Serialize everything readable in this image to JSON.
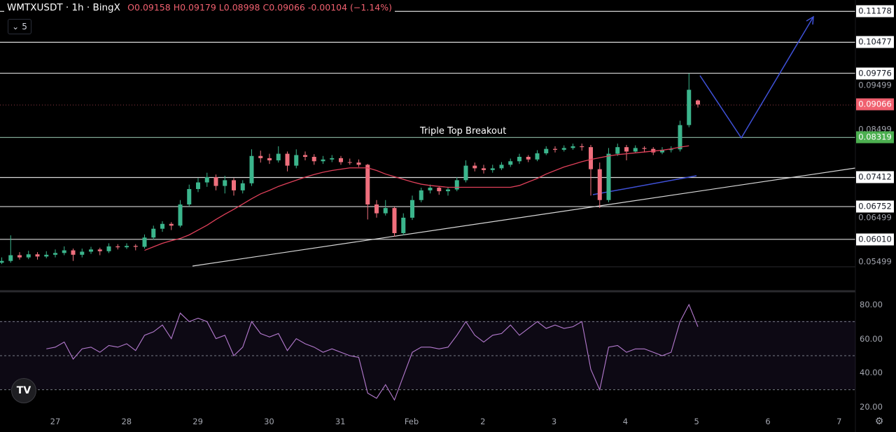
{
  "header": {
    "symbol": "WMTXUSDT · 1h · BingX",
    "open_k": "O",
    "open": "0.09158",
    "high_k": "H",
    "high": "0.09179",
    "low_k": "L",
    "low": "0.08998",
    "close_k": "C",
    "close": "0.09066",
    "change": "-0.00104 (−1.14%)",
    "indicator_toggle": "5"
  },
  "annotation": "Triple Top Breakout",
  "colors": {
    "up": "#3bb58c",
    "down": "#ef6f7d",
    "ma": "#e0405a",
    "rsi": "#b57bd0",
    "projection": "#3f51d8",
    "level": "#d9d9d9",
    "support": "#7fa593",
    "last_price": "#f0606f",
    "breakout_price": "#4caf50"
  },
  "price_axis": [
    {
      "v": "0.11178",
      "kind": "box"
    },
    {
      "v": "0.10477",
      "kind": "box"
    },
    {
      "v": "0.09776",
      "kind": "box"
    },
    {
      "v": "0.09499",
      "kind": "plain"
    },
    {
      "v": "0.09066",
      "kind": "red"
    },
    {
      "v": "0.08499",
      "kind": "plain"
    },
    {
      "v": "0.08319",
      "kind": "green"
    },
    {
      "v": "0.07412",
      "kind": "box"
    },
    {
      "v": "0.06752",
      "kind": "box"
    },
    {
      "v": "0.06499",
      "kind": "plain"
    },
    {
      "v": "0.06010",
      "kind": "box"
    },
    {
      "v": "0.05499",
      "kind": "plain"
    }
  ],
  "rsi_axis": [
    "80.00",
    "60.00",
    "40.00",
    "20.00"
  ],
  "time_axis": [
    "27",
    "28",
    "29",
    "30",
    "31",
    "Feb",
    "2",
    "3",
    "4",
    "5",
    "6",
    "7"
  ],
  "icons": {
    "logo": "tradingview-logo",
    "settings": "gear-icon",
    "toggle": "chevron-down-icon"
  },
  "chart_data": [
    {
      "type": "candlestick",
      "title": "WMTXUSDT · 1h · BingX",
      "ylim": [
        0.0535,
        0.1125
      ],
      "horizontal_levels": [
        0.11178,
        0.10477,
        0.09776,
        0.08319,
        0.07412,
        0.06752,
        0.0601
      ],
      "last_price": 0.09066,
      "candles": [
        [
          0.0548,
          0.056,
          0.0545,
          0.0552
        ],
        [
          0.0552,
          0.061,
          0.0548,
          0.0565
        ],
        [
          0.0565,
          0.0572,
          0.0555,
          0.056
        ],
        [
          0.056,
          0.0575,
          0.0556,
          0.0567
        ],
        [
          0.0567,
          0.0572,
          0.0555,
          0.0562
        ],
        [
          0.0562,
          0.0574,
          0.0558,
          0.0566
        ],
        [
          0.0566,
          0.0578,
          0.056,
          0.057
        ],
        [
          0.057,
          0.0585,
          0.0565,
          0.0576
        ],
        [
          0.0576,
          0.058,
          0.0552,
          0.0566
        ],
        [
          0.0566,
          0.058,
          0.056,
          0.0573
        ],
        [
          0.0573,
          0.0584,
          0.0568,
          0.0578
        ],
        [
          0.0578,
          0.0582,
          0.0565,
          0.0574
        ],
        [
          0.0574,
          0.0592,
          0.057,
          0.0585
        ],
        [
          0.0585,
          0.059,
          0.0578,
          0.0583
        ],
        [
          0.0583,
          0.0592,
          0.0579,
          0.0586
        ],
        [
          0.0586,
          0.059,
          0.0576,
          0.0584
        ],
        [
          0.0584,
          0.0612,
          0.058,
          0.0605
        ],
        [
          0.0605,
          0.0632,
          0.06,
          0.0625
        ],
        [
          0.0625,
          0.0642,
          0.0618,
          0.0636
        ],
        [
          0.0636,
          0.064,
          0.0622,
          0.0632
        ],
        [
          0.0632,
          0.069,
          0.0628,
          0.068
        ],
        [
          0.068,
          0.0725,
          0.0675,
          0.0715
        ],
        [
          0.0715,
          0.074,
          0.0708,
          0.073
        ],
        [
          0.073,
          0.0752,
          0.072,
          0.0742
        ],
        [
          0.0742,
          0.0748,
          0.0712,
          0.0722
        ],
        [
          0.0722,
          0.0745,
          0.0705,
          0.0735
        ],
        [
          0.0735,
          0.074,
          0.07,
          0.0712
        ],
        [
          0.0712,
          0.0735,
          0.0705,
          0.0728
        ],
        [
          0.0728,
          0.0805,
          0.0722,
          0.079
        ],
        [
          0.079,
          0.0802,
          0.0775,
          0.0785
        ],
        [
          0.0785,
          0.0795,
          0.0772,
          0.078
        ],
        [
          0.078,
          0.0812,
          0.0775,
          0.0795
        ],
        [
          0.0795,
          0.08,
          0.0755,
          0.0768
        ],
        [
          0.0768,
          0.0805,
          0.0762,
          0.0792
        ],
        [
          0.0792,
          0.08,
          0.078,
          0.0788
        ],
        [
          0.0788,
          0.0794,
          0.077,
          0.0778
        ],
        [
          0.0778,
          0.079,
          0.0772,
          0.0782
        ],
        [
          0.0782,
          0.0792,
          0.0776,
          0.0785
        ],
        [
          0.0785,
          0.079,
          0.077,
          0.0776
        ],
        [
          0.0776,
          0.0784,
          0.077,
          0.0775
        ],
        [
          0.0775,
          0.0782,
          0.0765,
          0.077
        ],
        [
          0.077,
          0.0772,
          0.0646,
          0.068
        ],
        [
          0.068,
          0.069,
          0.065,
          0.066
        ],
        [
          0.066,
          0.069,
          0.0655,
          0.0672
        ],
        [
          0.0672,
          0.0675,
          0.0607,
          0.0615
        ],
        [
          0.0615,
          0.066,
          0.061,
          0.065
        ],
        [
          0.065,
          0.07,
          0.0645,
          0.069
        ],
        [
          0.069,
          0.0718,
          0.0685,
          0.0712
        ],
        [
          0.0712,
          0.0725,
          0.0705,
          0.0718
        ],
        [
          0.0718,
          0.0722,
          0.0702,
          0.071
        ],
        [
          0.071,
          0.072,
          0.07,
          0.0714
        ],
        [
          0.0714,
          0.0742,
          0.071,
          0.0735
        ],
        [
          0.0735,
          0.078,
          0.073,
          0.0768
        ],
        [
          0.0768,
          0.0775,
          0.0755,
          0.0762
        ],
        [
          0.0762,
          0.077,
          0.075,
          0.0758
        ],
        [
          0.0758,
          0.077,
          0.0752,
          0.0762
        ],
        [
          0.0762,
          0.0776,
          0.0758,
          0.077
        ],
        [
          0.077,
          0.0784,
          0.0765,
          0.0778
        ],
        [
          0.0778,
          0.0795,
          0.0772,
          0.0788
        ],
        [
          0.0788,
          0.0792,
          0.0776,
          0.0782
        ],
        [
          0.0782,
          0.0803,
          0.0778,
          0.0796
        ],
        [
          0.0796,
          0.0812,
          0.0792,
          0.0806
        ],
        [
          0.0806,
          0.0812,
          0.0798,
          0.0804
        ],
        [
          0.0804,
          0.0814,
          0.08,
          0.0808
        ],
        [
          0.0808,
          0.0818,
          0.0804,
          0.0812
        ],
        [
          0.0812,
          0.0818,
          0.0802,
          0.081
        ],
        [
          0.081,
          0.0815,
          0.07,
          0.076
        ],
        [
          0.076,
          0.0775,
          0.0672,
          0.069
        ],
        [
          0.069,
          0.0808,
          0.0685,
          0.0795
        ],
        [
          0.0795,
          0.0818,
          0.079,
          0.081
        ],
        [
          0.081,
          0.0815,
          0.078,
          0.08
        ],
        [
          0.08,
          0.0814,
          0.0796,
          0.0808
        ],
        [
          0.0808,
          0.0812,
          0.0798,
          0.0806
        ],
        [
          0.0806,
          0.081,
          0.0792,
          0.0798
        ],
        [
          0.0798,
          0.081,
          0.0794,
          0.0804
        ],
        [
          0.0804,
          0.0812,
          0.0798,
          0.0805
        ],
        [
          0.0805,
          0.087,
          0.08,
          0.086
        ],
        [
          0.086,
          0.0977,
          0.0855,
          0.094
        ],
        [
          0.09158,
          0.09179,
          0.08998,
          0.09066
        ]
      ],
      "moving_average": [
        null,
        null,
        null,
        null,
        null,
        null,
        null,
        null,
        null,
        null,
        null,
        null,
        null,
        null,
        null,
        null,
        0.0576,
        0.0584,
        0.0592,
        0.0598,
        0.0603,
        0.0611,
        0.0622,
        0.0633,
        0.0646,
        0.0658,
        0.0669,
        0.0681,
        0.0693,
        0.0704,
        0.0712,
        0.0721,
        0.0728,
        0.0735,
        0.0742,
        0.0748,
        0.0753,
        0.0757,
        0.076,
        0.0763,
        0.0763,
        0.0763,
        0.0757,
        0.0749,
        0.0743,
        0.0737,
        0.0731,
        0.0726,
        0.0723,
        0.0721,
        0.0719,
        0.0719,
        0.0719,
        0.0719,
        0.0719,
        0.0719,
        0.0719,
        0.0719,
        0.0723,
        0.0731,
        0.0739,
        0.0749,
        0.0757,
        0.0765,
        0.0771,
        0.0777,
        0.0782,
        0.0786,
        0.079,
        0.0793,
        0.0795,
        0.0797,
        0.0799,
        0.0801,
        0.0803,
        0.0806,
        0.081,
        0.0813,
        null
      ]
    },
    {
      "type": "line",
      "ylim": [
        20,
        80
      ],
      "bands": [
        70,
        50,
        30
      ],
      "values": [
        null,
        null,
        null,
        null,
        null,
        54,
        55,
        58,
        48,
        54,
        55,
        52,
        56,
        55,
        57,
        53,
        62,
        64,
        68,
        60,
        75,
        70,
        72,
        70,
        60,
        62,
        50,
        55,
        70,
        63,
        61,
        63,
        53,
        60,
        57,
        55,
        52,
        54,
        52,
        50,
        49,
        28,
        25,
        33,
        24,
        38,
        52,
        55,
        55,
        54,
        55,
        62,
        70,
        62,
        58,
        62,
        63,
        68,
        62,
        66,
        70,
        66,
        68,
        66,
        67,
        70,
        42,
        30,
        55,
        56,
        52,
        54,
        54,
        52,
        50,
        52,
        70,
        80,
        67
      ]
    }
  ]
}
